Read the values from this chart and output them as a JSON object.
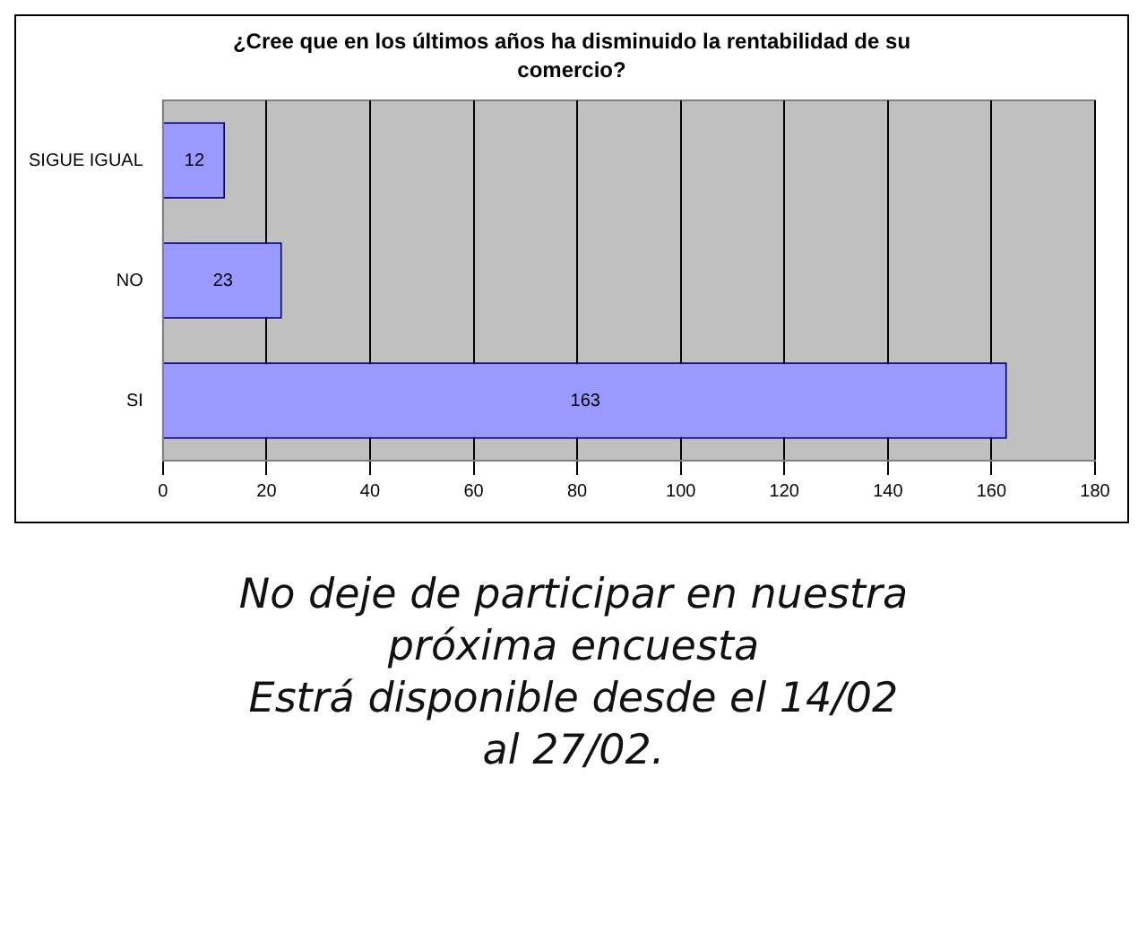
{
  "chart_data": {
    "type": "bar",
    "orientation": "horizontal",
    "title": "¿Cree que en los últimos años ha disminuido la rentabilidad de su comercio?",
    "categories": [
      "SIGUE IGUAL",
      "NO",
      "SI"
    ],
    "values": [
      12,
      23,
      163
    ],
    "color": "#9999ff",
    "xlim": [
      0,
      180
    ],
    "xticks": [
      0,
      20,
      40,
      60,
      80,
      100,
      120,
      140,
      160,
      180
    ],
    "grid": "x",
    "data_labels": true,
    "legend": false,
    "annotations": [
      "No deje de participar en nuestra",
      "próxima encuesta",
      "Estrá disponible desde el 14/02",
      "al 27/02."
    ]
  }
}
